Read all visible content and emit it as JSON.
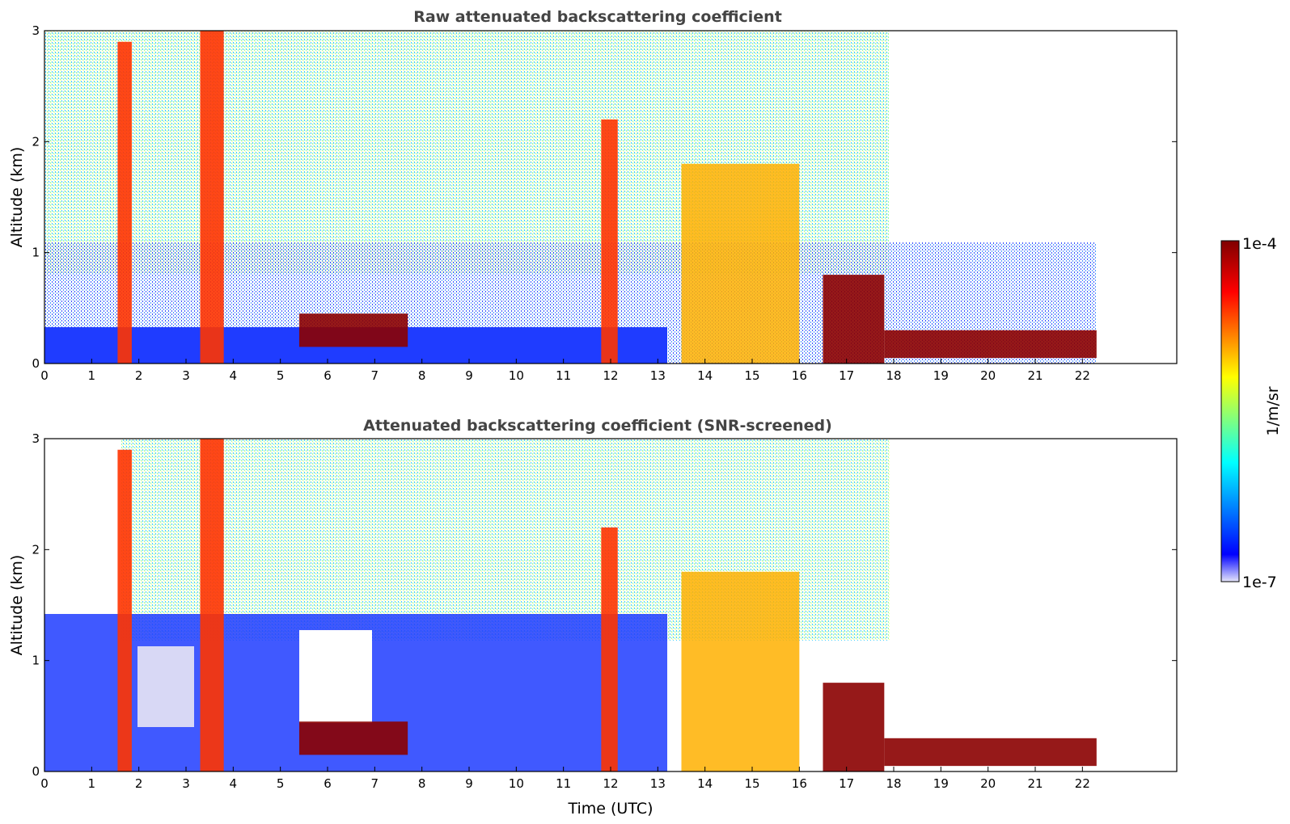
{
  "chart_data": [
    {
      "type": "heatmap",
      "title": "Raw attenuated backscattering coefficient",
      "xlabel": "",
      "ylabel": "Altitude (km)",
      "xlim": [
        0,
        24
      ],
      "ylim": [
        0,
        3
      ],
      "x_ticks": [
        "0",
        "1",
        "2",
        "3",
        "4",
        "5",
        "6",
        "7",
        "8",
        "9",
        "10",
        "11",
        "12",
        "13",
        "14",
        "15",
        "16",
        "17",
        "18",
        "19",
        "20",
        "21",
        "22"
      ],
      "y_ticks": [
        "0",
        "1",
        "2",
        "3"
      ],
      "data_extent_x": [
        0,
        22.3
      ],
      "features": [
        {
          "x_start": 1.55,
          "x_end": 1.85,
          "y_start": 0.0,
          "y_end": 2.9,
          "level": "high"
        },
        {
          "x_start": 3.3,
          "x_end": 3.8,
          "y_start": 0.0,
          "y_end": 3.0,
          "level": "high"
        },
        {
          "x_start": 11.8,
          "x_end": 12.15,
          "y_start": 0.0,
          "y_end": 2.2,
          "level": "high"
        },
        {
          "x_start": 13.5,
          "x_end": 16.0,
          "y_start": 0.0,
          "y_end": 1.8,
          "level": "medium-high"
        },
        {
          "x_start": 16.5,
          "x_end": 17.8,
          "y_start": 0.0,
          "y_end": 0.8,
          "level": "max"
        },
        {
          "x_start": 17.8,
          "x_end": 22.3,
          "y_start": 0.05,
          "y_end": 0.3,
          "level": "max"
        },
        {
          "x_start": 5.4,
          "x_end": 7.7,
          "y_start": 0.15,
          "y_end": 0.45,
          "level": "max"
        }
      ]
    },
    {
      "type": "heatmap",
      "title": "Attenuated backscattering coefficient (SNR-screened)",
      "xlabel": "Time (UTC)",
      "ylabel": "Altitude (km)",
      "xlim": [
        0,
        24
      ],
      "ylim": [
        0,
        3
      ],
      "x_ticks": [
        "0",
        "1",
        "2",
        "3",
        "4",
        "5",
        "6",
        "7",
        "8",
        "9",
        "10",
        "11",
        "12",
        "13",
        "14",
        "15",
        "16",
        "17",
        "18",
        "19",
        "20",
        "21",
        "22"
      ],
      "y_ticks": [
        "0",
        "1",
        "2",
        "3"
      ],
      "data_extent_x": [
        0,
        22.3
      ],
      "features": [
        {
          "x_start": 1.55,
          "x_end": 1.85,
          "y_start": 0.0,
          "y_end": 2.9,
          "level": "high"
        },
        {
          "x_start": 3.3,
          "x_end": 3.8,
          "y_start": 0.0,
          "y_end": 3.0,
          "level": "high"
        },
        {
          "x_start": 11.8,
          "x_end": 12.15,
          "y_start": 0.0,
          "y_end": 2.2,
          "level": "high"
        },
        {
          "x_start": 13.5,
          "x_end": 16.0,
          "y_start": 0.0,
          "y_end": 1.8,
          "level": "medium-high"
        },
        {
          "x_start": 16.5,
          "x_end": 17.8,
          "y_start": 0.0,
          "y_end": 0.8,
          "level": "max"
        },
        {
          "x_start": 17.8,
          "x_end": 22.3,
          "y_start": 0.05,
          "y_end": 0.3,
          "level": "max"
        },
        {
          "x_start": 5.4,
          "x_end": 7.7,
          "y_start": 0.15,
          "y_end": 0.45,
          "level": "max"
        }
      ]
    }
  ],
  "colorbar": {
    "label": "1/m/sr",
    "max_label": "1e-4",
    "min_label": "1e-7",
    "colormap": "jet",
    "colors": [
      "#e6e6fa",
      "#0000ff",
      "#00ffff",
      "#ffff00",
      "#ff0000",
      "#800000"
    ]
  }
}
